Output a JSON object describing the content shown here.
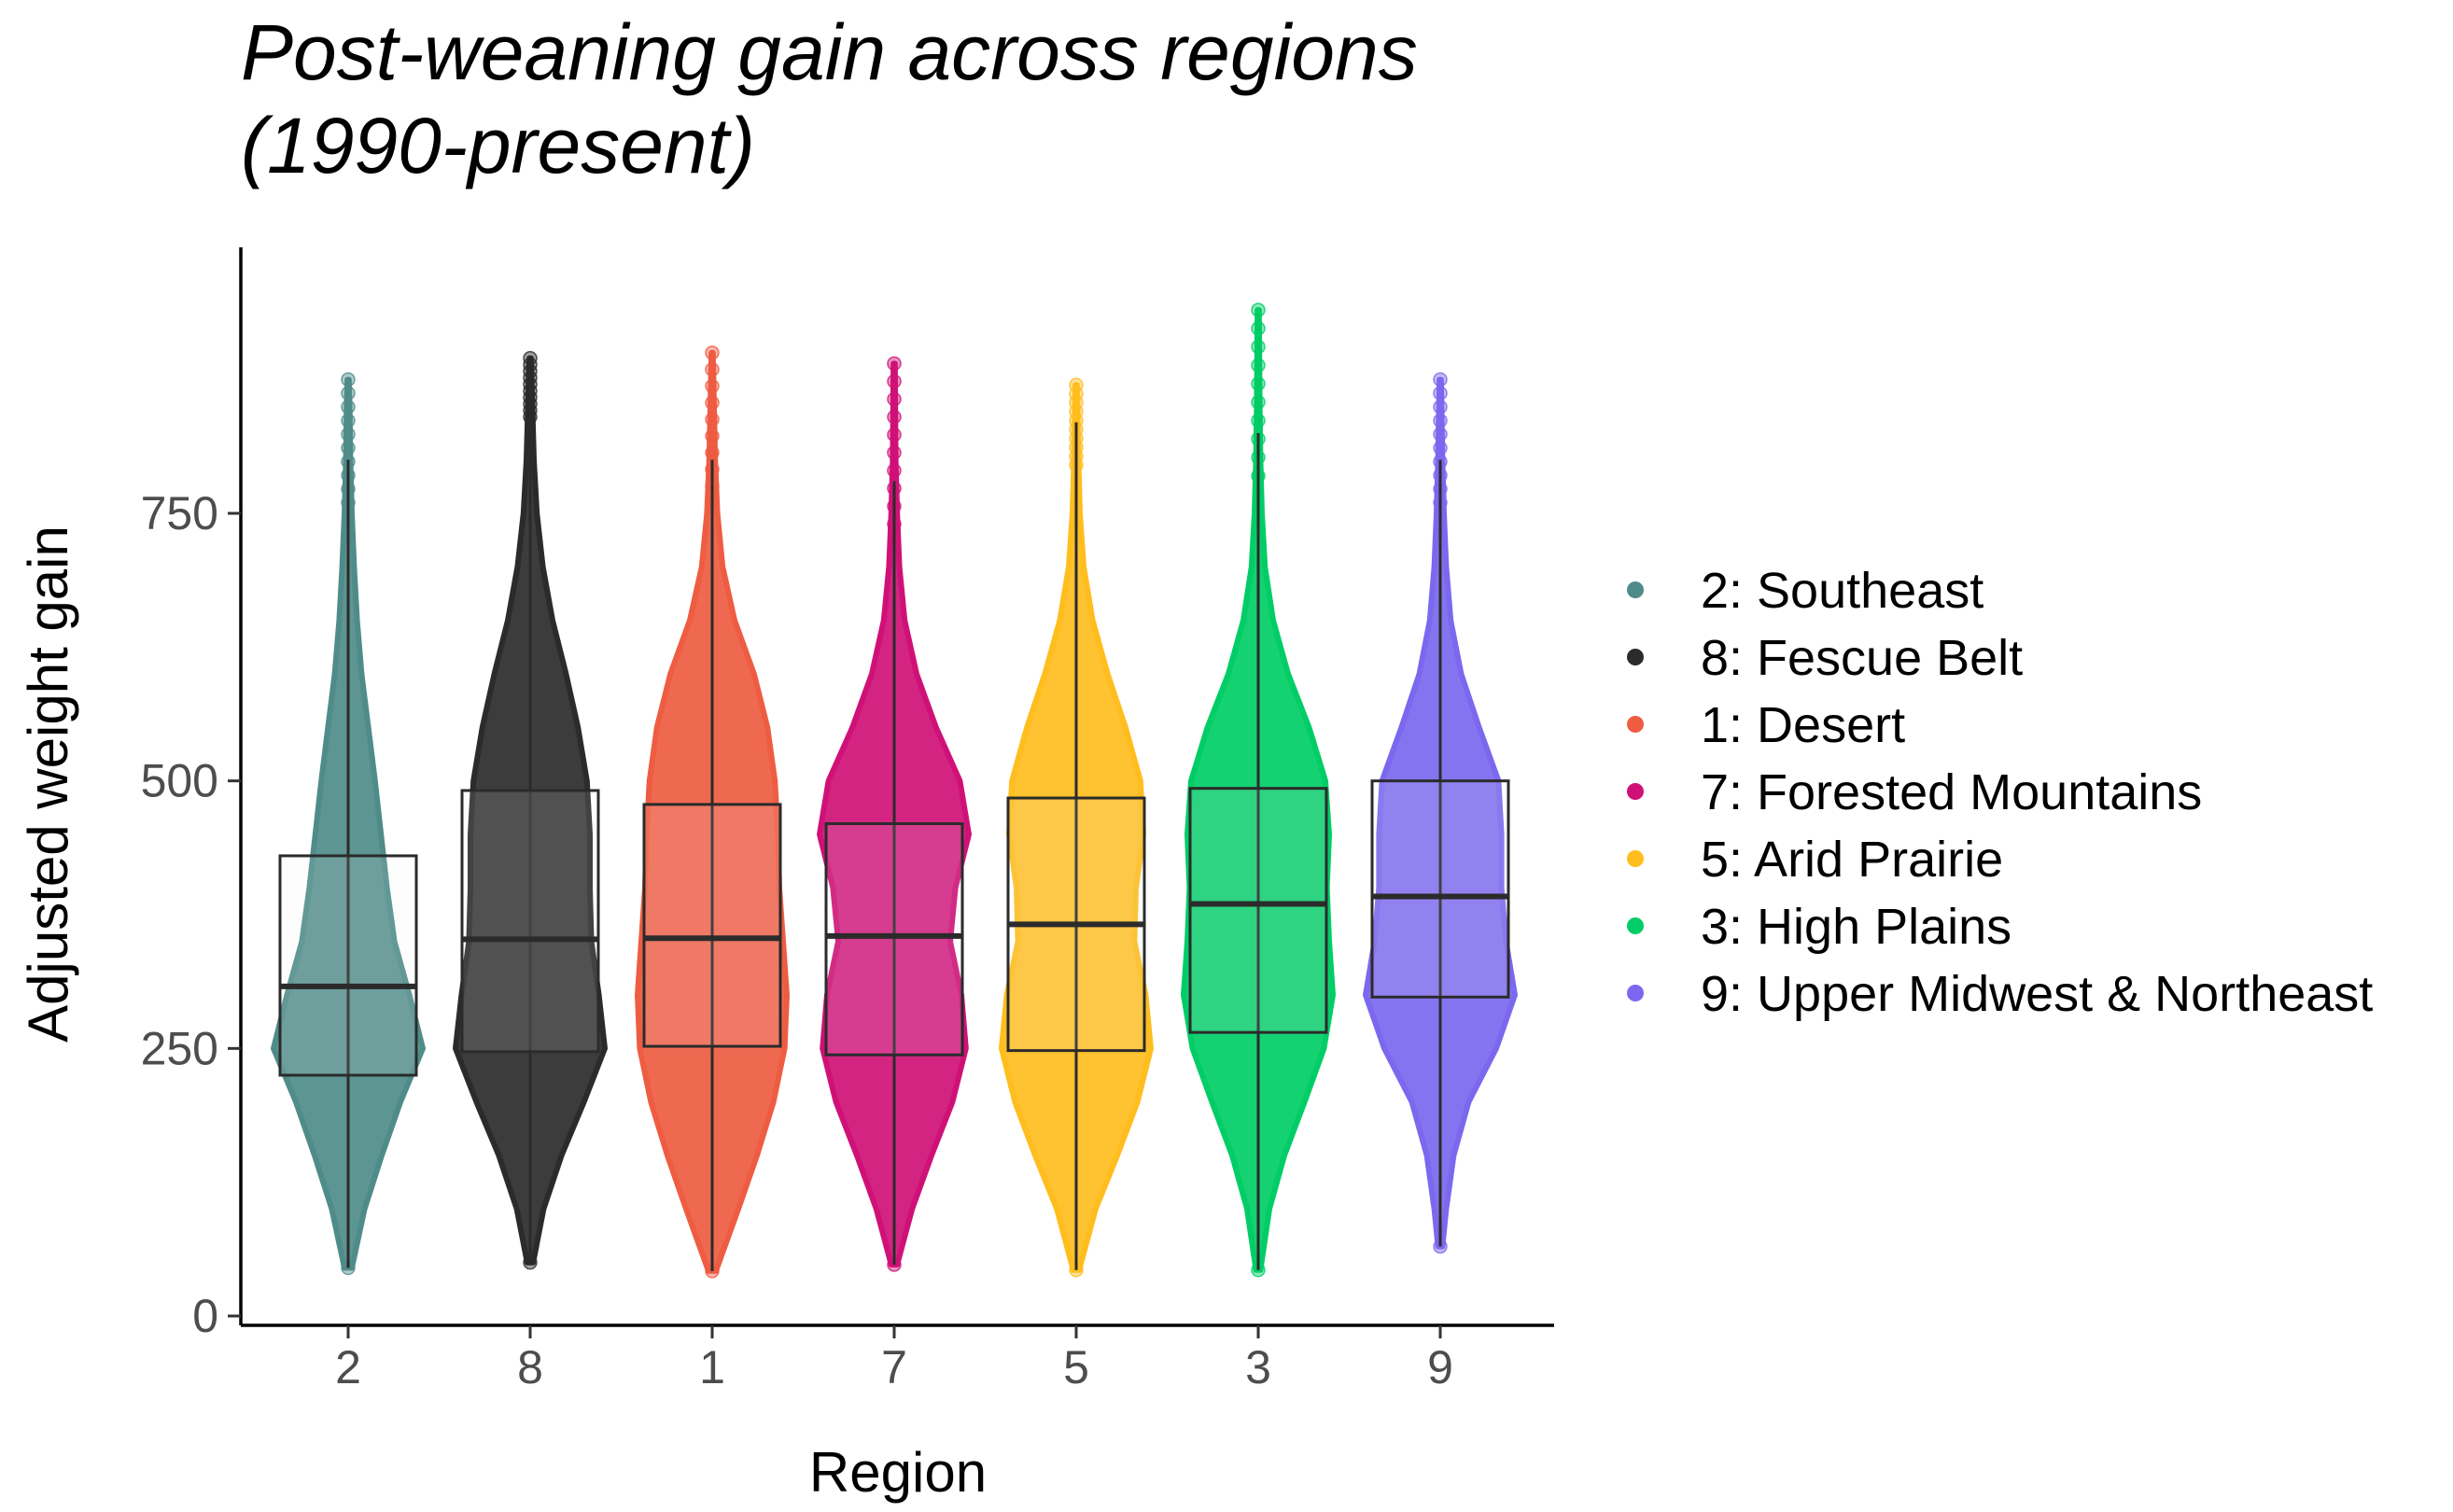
{
  "chart_data": {
    "type": "violin-box",
    "title_line1": "Post-weaning gain across regions",
    "title_line2": "(1990-present)",
    "xlabel": "Region",
    "ylabel": "Adjusted weight gain",
    "ylim": [
      0,
      950
    ],
    "y_ticks": [
      0,
      250,
      500,
      750
    ],
    "y_tick_labels": [
      "0",
      "250",
      "500",
      "750"
    ],
    "categories": [
      "2",
      "8",
      "1",
      "7",
      "5",
      "3",
      "9"
    ],
    "legend_position": "right",
    "series": [
      {
        "name": "2: Southeast",
        "region": "2",
        "color": "#4F8C89",
        "min": 45,
        "q1": 225,
        "median": 308,
        "q3": 430,
        "max": 800,
        "max_outlier": 875,
        "violin_widths": [
          [
            45,
            0.05
          ],
          [
            100,
            0.22
          ],
          [
            150,
            0.45
          ],
          [
            200,
            0.7
          ],
          [
            250,
            1.0
          ],
          [
            300,
            0.82
          ],
          [
            350,
            0.62
          ],
          [
            400,
            0.52
          ],
          [
            450,
            0.44
          ],
          [
            500,
            0.36
          ],
          [
            550,
            0.27
          ],
          [
            600,
            0.18
          ],
          [
            650,
            0.12
          ],
          [
            700,
            0.08
          ],
          [
            750,
            0.05
          ],
          [
            800,
            0.03
          ],
          [
            850,
            0.02
          ],
          [
            875,
            0.01
          ]
        ]
      },
      {
        "name": "8: Fescue Belt",
        "region": "8",
        "color": "#2B2B2B",
        "min": 50,
        "q1": 247,
        "median": 352,
        "q3": 491,
        "max": 880,
        "max_outlier": 895,
        "violin_widths": [
          [
            50,
            0.04
          ],
          [
            100,
            0.18
          ],
          [
            150,
            0.42
          ],
          [
            200,
            0.72
          ],
          [
            250,
            1.0
          ],
          [
            300,
            0.92
          ],
          [
            350,
            0.82
          ],
          [
            400,
            0.8
          ],
          [
            450,
            0.8
          ],
          [
            500,
            0.76
          ],
          [
            550,
            0.64
          ],
          [
            600,
            0.48
          ],
          [
            650,
            0.3
          ],
          [
            700,
            0.17
          ],
          [
            750,
            0.09
          ],
          [
            800,
            0.05
          ],
          [
            850,
            0.03
          ],
          [
            895,
            0.01
          ]
        ]
      },
      {
        "name": "1: Desert",
        "region": "1",
        "color": "#EE5C42",
        "min": 42,
        "q1": 252,
        "median": 353,
        "q3": 478,
        "max": 800,
        "max_outlier": 900,
        "violin_widths": [
          [
            42,
            0.05
          ],
          [
            100,
            0.35
          ],
          [
            150,
            0.6
          ],
          [
            200,
            0.82
          ],
          [
            250,
            0.97
          ],
          [
            300,
            1.0
          ],
          [
            350,
            0.95
          ],
          [
            400,
            0.9
          ],
          [
            450,
            0.88
          ],
          [
            500,
            0.84
          ],
          [
            550,
            0.74
          ],
          [
            600,
            0.56
          ],
          [
            650,
            0.3
          ],
          [
            700,
            0.14
          ],
          [
            750,
            0.07
          ],
          [
            800,
            0.04
          ],
          [
            900,
            0.01
          ]
        ]
      },
      {
        "name": "7: Forested Mountains",
        "region": "7",
        "color": "#CF1177",
        "min": 48,
        "q1": 244,
        "median": 355,
        "q3": 460,
        "max": 780,
        "max_outlier": 890,
        "violin_widths": [
          [
            48,
            0.04
          ],
          [
            100,
            0.24
          ],
          [
            150,
            0.5
          ],
          [
            200,
            0.78
          ],
          [
            250,
            0.96
          ],
          [
            300,
            0.9
          ],
          [
            350,
            0.75
          ],
          [
            400,
            0.82
          ],
          [
            450,
            1.0
          ],
          [
            500,
            0.88
          ],
          [
            550,
            0.56
          ],
          [
            600,
            0.3
          ],
          [
            650,
            0.14
          ],
          [
            700,
            0.07
          ],
          [
            750,
            0.04
          ],
          [
            800,
            0.02
          ],
          [
            890,
            0.01
          ]
        ]
      },
      {
        "name": "5: Arid Prairie",
        "region": "5",
        "color": "#FFBD1E",
        "min": 43,
        "q1": 248,
        "median": 366,
        "q3": 484,
        "max": 835,
        "max_outlier": 870,
        "violin_widths": [
          [
            43,
            0.04
          ],
          [
            100,
            0.26
          ],
          [
            150,
            0.55
          ],
          [
            200,
            0.82
          ],
          [
            250,
            1.0
          ],
          [
            300,
            0.93
          ],
          [
            350,
            0.78
          ],
          [
            400,
            0.8
          ],
          [
            450,
            0.9
          ],
          [
            500,
            0.86
          ],
          [
            550,
            0.66
          ],
          [
            600,
            0.42
          ],
          [
            650,
            0.22
          ],
          [
            700,
            0.1
          ],
          [
            750,
            0.05
          ],
          [
            800,
            0.03
          ],
          [
            870,
            0.01
          ]
        ]
      },
      {
        "name": "3: High Plains",
        "region": "3",
        "color": "#00CD66",
        "min": 43,
        "q1": 265,
        "median": 385,
        "q3": 493,
        "max": 825,
        "max_outlier": 940,
        "violin_widths": [
          [
            43,
            0.03
          ],
          [
            100,
            0.15
          ],
          [
            150,
            0.35
          ],
          [
            200,
            0.62
          ],
          [
            250,
            0.88
          ],
          [
            300,
            1.0
          ],
          [
            350,
            0.95
          ],
          [
            400,
            0.92
          ],
          [
            450,
            0.95
          ],
          [
            500,
            0.9
          ],
          [
            550,
            0.68
          ],
          [
            600,
            0.4
          ],
          [
            650,
            0.2
          ],
          [
            700,
            0.09
          ],
          [
            750,
            0.05
          ],
          [
            800,
            0.03
          ],
          [
            850,
            0.02
          ],
          [
            940,
            0.01
          ]
        ]
      },
      {
        "name": "9: Upper Midwest & Northeast",
        "region": "9",
        "color": "#7B68EE",
        "min": 65,
        "q1": 298,
        "median": 392,
        "q3": 500,
        "max": 800,
        "max_outlier": 875,
        "violin_widths": [
          [
            65,
            0.03
          ],
          [
            100,
            0.08
          ],
          [
            150,
            0.18
          ],
          [
            200,
            0.38
          ],
          [
            250,
            0.75
          ],
          [
            300,
            1.0
          ],
          [
            350,
            0.88
          ],
          [
            400,
            0.82
          ],
          [
            450,
            0.82
          ],
          [
            500,
            0.78
          ],
          [
            550,
            0.52
          ],
          [
            600,
            0.28
          ],
          [
            650,
            0.14
          ],
          [
            700,
            0.08
          ],
          [
            750,
            0.05
          ],
          [
            800,
            0.03
          ],
          [
            875,
            0.01
          ]
        ]
      }
    ]
  }
}
